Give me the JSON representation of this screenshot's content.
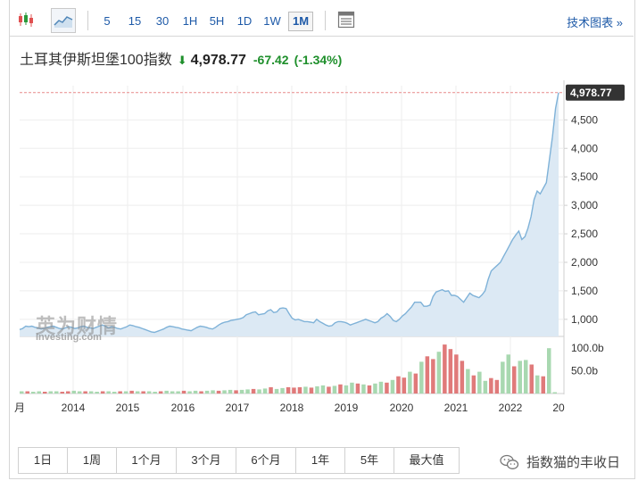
{
  "toolbar": {
    "intervals": [
      "5",
      "15",
      "30",
      "1H",
      "5H",
      "1D",
      "1W",
      "1M"
    ],
    "active_interval": "1M",
    "tech_chart_label": "技术图表 »"
  },
  "header": {
    "title": "土耳其伊斯坦堡100指数",
    "price": "4,978.77",
    "change": "-67.42",
    "change_pct": "(-1.34%)"
  },
  "watermark": {
    "cn": "英为财情",
    "en": "Investing.com"
  },
  "periods": [
    "1日",
    "1周",
    "1个月",
    "3个月",
    "6个月",
    "1年",
    "5年",
    "最大值"
  ],
  "wechat_label": "指数猫的丰收日",
  "colors": {
    "line": "#7fb2d8",
    "area": "#dce9f4",
    "vol_up": "#a8d8b0",
    "vol_down": "#e07a7a",
    "last_price_badge": "#333333",
    "dashed_line": "#e88a8a"
  },
  "chart_data": {
    "type": "area",
    "x_tick_labels": [
      "月",
      "2014",
      "2015",
      "2016",
      "2017",
      "2018",
      "2019",
      "2020",
      "2021",
      "2022",
      "20"
    ],
    "y_tick_labels": [
      "1,000",
      "1,500",
      "2,000",
      "2,500",
      "3,000",
      "3,500",
      "4,000",
      "4,500"
    ],
    "ylim": [
      700,
      5100
    ],
    "last_price_label": "4,978.77",
    "last_price": 4978.77,
    "price_series": [
      820,
      840,
      880,
      870,
      880,
      860,
      850,
      830,
      840,
      860,
      870,
      880,
      860,
      840,
      830,
      850,
      870,
      860,
      840,
      850,
      870,
      880,
      860,
      850,
      840,
      860,
      880,
      900,
      880,
      850,
      870,
      860,
      840,
      830,
      850,
      870,
      900,
      890,
      870,
      860,
      840,
      820,
      800,
      780,
      770,
      790,
      810,
      830,
      860,
      880,
      870,
      860,
      850,
      830,
      820,
      810,
      800,
      830,
      860,
      880,
      870,
      860,
      840,
      830,
      860,
      900,
      930,
      950,
      960,
      980,
      990,
      1000,
      1010,
      1030,
      1080,
      1100,
      1120,
      1130,
      1080,
      1090,
      1100,
      1150,
      1170,
      1120,
      1130,
      1190,
      1200,
      1190,
      1100,
      1020,
      990,
      1000,
      980,
      960,
      960,
      950,
      940,
      1000,
      960,
      930,
      900,
      880,
      890,
      940,
      960,
      960,
      950,
      930,
      900,
      920,
      940,
      960,
      980,
      1000,
      980,
      960,
      940,
      960,
      1020,
      1050,
      1100,
      1050,
      980,
      960,
      1000,
      1060,
      1100,
      1160,
      1220,
      1300,
      1300,
      1300,
      1230,
      1230,
      1250,
      1400,
      1480,
      1500,
      1520,
      1490,
      1500,
      1420,
      1420,
      1400,
      1350,
      1300,
      1380,
      1460,
      1420,
      1400,
      1380,
      1430,
      1500,
      1700,
      1850,
      1900,
      1950,
      2000,
      2100,
      2200,
      2300,
      2400,
      2480,
      2550,
      2400,
      2450,
      2600,
      2800,
      3100,
      3250,
      3200,
      3300,
      3400,
      3800,
      4200,
      4700,
      4978.77
    ],
    "volume_label_ticks": [
      "100.0b",
      "50.0b"
    ],
    "volume_bars": [
      {
        "v": 5,
        "up": true
      },
      {
        "v": 5,
        "up": false
      },
      {
        "v": 4,
        "up": true
      },
      {
        "v": 5,
        "up": true
      },
      {
        "v": 4,
        "up": false
      },
      {
        "v": 5,
        "up": true
      },
      {
        "v": 5,
        "up": true
      },
      {
        "v": 4,
        "up": false
      },
      {
        "v": 5,
        "up": false
      },
      {
        "v": 6,
        "up": true
      },
      {
        "v": 5,
        "up": true
      },
      {
        "v": 5,
        "up": false
      },
      {
        "v": 5,
        "up": true
      },
      {
        "v": 4,
        "up": true
      },
      {
        "v": 5,
        "up": false
      },
      {
        "v": 5,
        "up": true
      },
      {
        "v": 4,
        "up": true
      },
      {
        "v": 5,
        "up": false
      },
      {
        "v": 5,
        "up": true
      },
      {
        "v": 6,
        "up": false
      },
      {
        "v": 5,
        "up": true
      },
      {
        "v": 5,
        "up": false
      },
      {
        "v": 5,
        "up": true
      },
      {
        "v": 4,
        "up": true
      },
      {
        "v": 5,
        "up": false
      },
      {
        "v": 6,
        "up": true
      },
      {
        "v": 5,
        "up": true
      },
      {
        "v": 5,
        "up": true
      },
      {
        "v": 6,
        "up": false
      },
      {
        "v": 5,
        "up": true
      },
      {
        "v": 6,
        "up": true
      },
      {
        "v": 5,
        "up": false
      },
      {
        "v": 6,
        "up": true
      },
      {
        "v": 7,
        "up": true
      },
      {
        "v": 6,
        "up": false
      },
      {
        "v": 7,
        "up": true
      },
      {
        "v": 8,
        "up": true
      },
      {
        "v": 7,
        "up": false
      },
      {
        "v": 8,
        "up": true
      },
      {
        "v": 9,
        "up": true
      },
      {
        "v": 10,
        "up": false
      },
      {
        "v": 9,
        "up": true
      },
      {
        "v": 11,
        "up": true
      },
      {
        "v": 14,
        "up": false
      },
      {
        "v": 10,
        "up": true
      },
      {
        "v": 12,
        "up": true
      },
      {
        "v": 14,
        "up": false
      },
      {
        "v": 13,
        "up": false
      },
      {
        "v": 14,
        "up": false
      },
      {
        "v": 15,
        "up": true
      },
      {
        "v": 13,
        "up": false
      },
      {
        "v": 16,
        "up": true
      },
      {
        "v": 18,
        "up": true
      },
      {
        "v": 15,
        "up": false
      },
      {
        "v": 17,
        "up": true
      },
      {
        "v": 20,
        "up": false
      },
      {
        "v": 18,
        "up": true
      },
      {
        "v": 24,
        "up": true
      },
      {
        "v": 22,
        "up": false
      },
      {
        "v": 20,
        "up": true
      },
      {
        "v": 18,
        "up": false
      },
      {
        "v": 22,
        "up": true
      },
      {
        "v": 26,
        "up": true
      },
      {
        "v": 24,
        "up": false
      },
      {
        "v": 30,
        "up": true
      },
      {
        "v": 38,
        "up": false
      },
      {
        "v": 35,
        "up": false
      },
      {
        "v": 48,
        "up": true
      },
      {
        "v": 44,
        "up": false
      },
      {
        "v": 70,
        "up": true
      },
      {
        "v": 82,
        "up": false
      },
      {
        "v": 76,
        "up": false
      },
      {
        "v": 92,
        "up": true
      },
      {
        "v": 108,
        "up": false
      },
      {
        "v": 98,
        "up": false
      },
      {
        "v": 86,
        "up": false
      },
      {
        "v": 72,
        "up": false
      },
      {
        "v": 54,
        "up": true
      },
      {
        "v": 40,
        "up": false
      },
      {
        "v": 48,
        "up": true
      },
      {
        "v": 28,
        "up": true
      },
      {
        "v": 34,
        "up": false
      },
      {
        "v": 30,
        "up": false
      },
      {
        "v": 70,
        "up": true
      },
      {
        "v": 86,
        "up": true
      },
      {
        "v": 60,
        "up": false
      },
      {
        "v": 72,
        "up": true
      },
      {
        "v": 74,
        "up": true
      },
      {
        "v": 64,
        "up": false
      },
      {
        "v": 40,
        "up": true
      },
      {
        "v": 38,
        "up": false
      },
      {
        "v": 100,
        "up": true
      },
      {
        "v": 3,
        "up": true
      }
    ]
  }
}
